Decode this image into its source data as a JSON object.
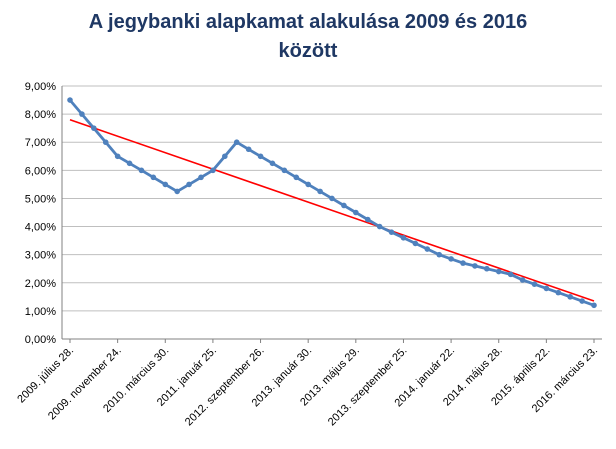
{
  "chart_data": {
    "type": "line",
    "title_line1": "A jegybanki alapkamat alakulása 2009 és 2016",
    "title_line2": "között",
    "xlabel": "",
    "ylabel": "",
    "ylim": [
      0,
      9
    ],
    "y_ticks": [
      "0,00%",
      "1,00%",
      "2,00%",
      "3,00%",
      "4,00%",
      "5,00%",
      "6,00%",
      "7,00%",
      "8,00%",
      "9,00%"
    ],
    "x_tick_labels": [
      "2009. július 28.",
      "2009. november 24.",
      "2010. március 30.",
      "2011. január 25.",
      "2012. szeptember 26.",
      "2013. január 30.",
      "2013. május 29.",
      "2013. szeptember 25.",
      "2014. január 22.",
      "2014. május 28.",
      "2015. április 22.",
      "2016. március 23."
    ],
    "grid": true,
    "legend": "none",
    "series": [
      {
        "values": [
          8.5,
          8.0,
          7.5,
          7.0,
          6.5,
          6.25,
          6.0,
          5.75,
          5.5,
          5.25,
          5.5,
          5.75,
          6.0,
          6.5,
          7.0,
          6.75,
          6.5,
          6.25,
          6.0,
          5.75,
          5.5,
          5.25,
          5.0,
          4.75,
          4.5,
          4.25,
          4.0,
          3.8,
          3.6,
          3.4,
          3.2,
          3.0,
          2.85,
          2.7,
          2.6,
          2.5,
          2.4,
          2.3,
          2.1,
          1.95,
          1.8,
          1.65,
          1.5,
          1.35,
          1.2
        ],
        "color": "#4f81bd"
      }
    ],
    "trendline": {
      "start": 7.8,
      "end": 1.35,
      "color": "#ff0000"
    }
  }
}
